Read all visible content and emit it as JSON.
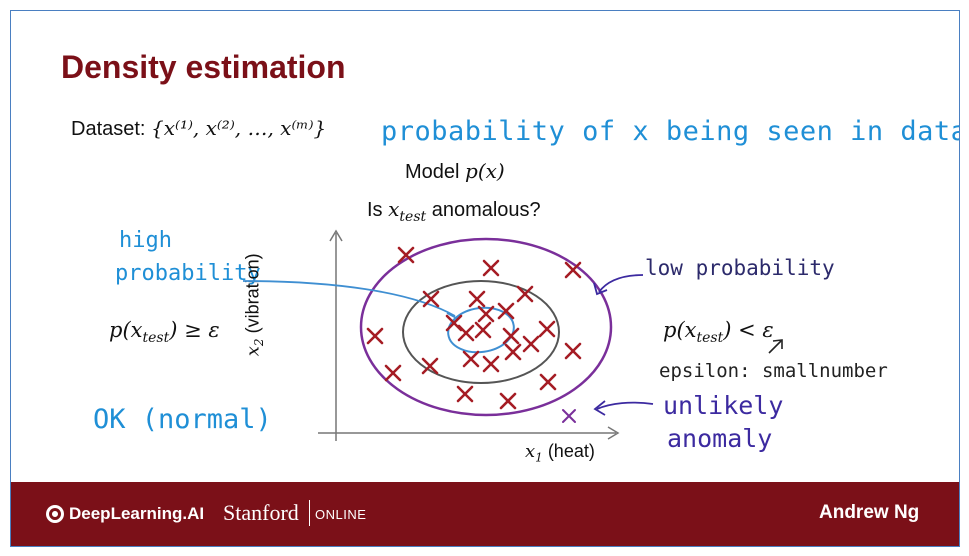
{
  "slide": {
    "title": "Density estimation",
    "dataset_label": "Dataset:",
    "dataset_set": "{x⁽¹⁾, x⁽²⁾, …, x⁽ᵐ⁾}",
    "model_label": "Model",
    "model_expr": "p(x)",
    "question_prefix": "Is",
    "question_var": "x",
    "question_sub": "test",
    "question_suffix": "anomalous?",
    "left_formula": "p(x",
    "left_formula_sub": "test",
    "left_formula_rest": ") ≥ ε",
    "right_formula": "p(x",
    "right_formula_sub": "test",
    "right_formula_rest": ") < ε",
    "axis_x_var": "x",
    "axis_x_sub": "1",
    "axis_x_label": "(heat)",
    "axis_y_var": "x",
    "axis_y_sub": "2",
    "axis_y_label": "(vibration)"
  },
  "annotations": {
    "probability_note": "probability of x being seen in dataset",
    "high_line1": "high",
    "high_line2": "probability",
    "low_probability": "low probability",
    "epsilon_note": "epsilon: smallnumber",
    "unlikely": "unlikely",
    "anomaly": "anomaly",
    "ok_normal": "OK (normal)"
  },
  "footer": {
    "brand": "DeepLearning.AI",
    "partner": "Stanford",
    "partner_suffix": "ONLINE",
    "instructor": "Andrew Ng"
  },
  "colors": {
    "title": "#7b1018",
    "footer_bg": "#7b1018",
    "marker": "#a51c24",
    "outer_ellipse": "#7a2f9a",
    "middle_ellipse": "#555555",
    "inner_ellipse": "#3f8fd2",
    "handwriting_blue": "#1f8fd6",
    "handwriting_purple": "#3c2aa0"
  }
}
